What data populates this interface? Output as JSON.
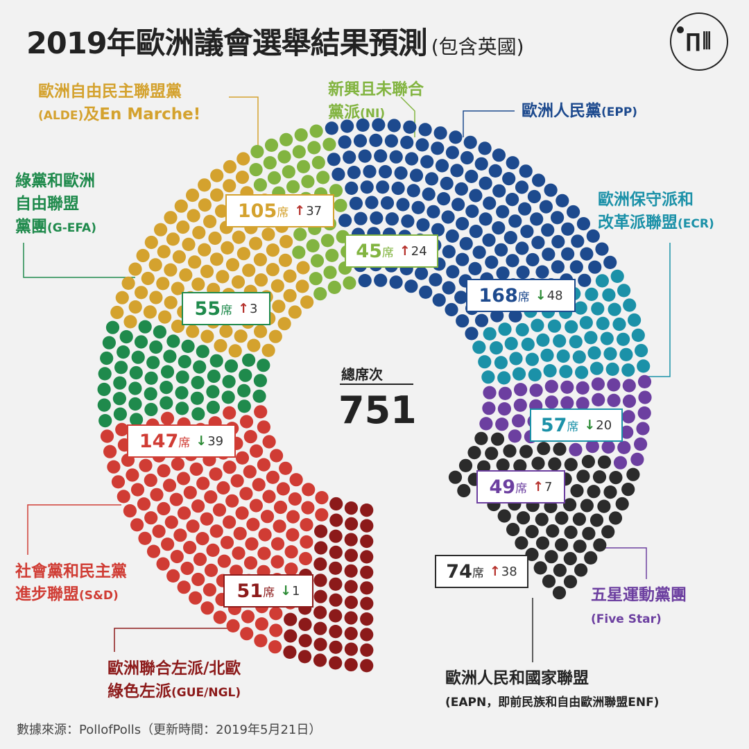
{
  "header": {
    "title": "2019年歐洲議會選舉結果預測",
    "title_suffix": "(包含英國)",
    "logo_icon": "initium-logo-icon"
  },
  "source_note": "數據來源：PollofPolls（更新時間：2019年5月21日）",
  "total": {
    "label": "總席次",
    "value": "751"
  },
  "seat_unit": "席",
  "chart_data": {
    "type": "parliament",
    "total_seats": 751,
    "parties": [
      {
        "key": "gue",
        "name_line1": "歐洲聯合左派/北歐",
        "name_line2": "綠色左派",
        "abbr": "(GUE/NGL)",
        "seats": 51,
        "seats_label": "51",
        "direction": "down",
        "change": "1",
        "color": "#8c1a1a"
      },
      {
        "key": "sd",
        "name_line1": "社會黨和民主黨",
        "name_line2": "進步聯盟",
        "abbr": "(S&D)",
        "seats": 147,
        "seats_label": "147",
        "direction": "down",
        "change": "39",
        "color": "#d03c34"
      },
      {
        "key": "green",
        "name_line1": "綠黨和歐洲",
        "name_line2": "自由聯盟",
        "name_line3": "黨團",
        "abbr": "(G-EFA)",
        "seats": 55,
        "seats_label": "55",
        "direction": "up",
        "change": "3",
        "color": "#1f8a4c"
      },
      {
        "key": "alde",
        "name_line1": "歐洲自由民主聯盟黨",
        "name_line2": "",
        "abbr": "(ALDE)",
        "extra": "及En Marche!",
        "seats": 105,
        "seats_label": "105",
        "direction": "up",
        "change": "37",
        "color": "#d4a22e"
      },
      {
        "key": "ni",
        "name_line1": "新興且未聯合",
        "name_line2": "黨派",
        "abbr": "(NI)",
        "seats": 45,
        "seats_label": "45",
        "direction": "up",
        "change": "24",
        "color": "#82b440"
      },
      {
        "key": "epp",
        "name_line1": "歐洲人民黨",
        "name_line2": "",
        "abbr": "(EPP)",
        "seats": 168,
        "seats_label": "168",
        "direction": "down",
        "change": "48",
        "color": "#1d4a8e"
      },
      {
        "key": "ecr",
        "name_line1": "歐洲保守派和",
        "name_line2": "改革派聯盟",
        "abbr": "(ECR)",
        "seats": 57,
        "seats_label": "57",
        "direction": "down",
        "change": "20",
        "color": "#1b91a8"
      },
      {
        "key": "fivestar",
        "name_line1": "五星運動黨團",
        "name_line2": "",
        "abbr": "(Five Star)",
        "seats": 49,
        "seats_label": "49",
        "direction": "up",
        "change": "7",
        "color": "#6c3fa0"
      },
      {
        "key": "eapn",
        "name_line1": "歐洲人民和國家聯盟",
        "name_line2": "",
        "abbr": "(EAPN，即前民族和自由歐洲聯盟ENF)",
        "seats": 74,
        "seats_label": "74",
        "direction": "up",
        "change": "38",
        "color": "#2b2b2b"
      }
    ],
    "arrow_colors": {
      "up": "#b5302b",
      "down": "#2a8a34"
    }
  }
}
